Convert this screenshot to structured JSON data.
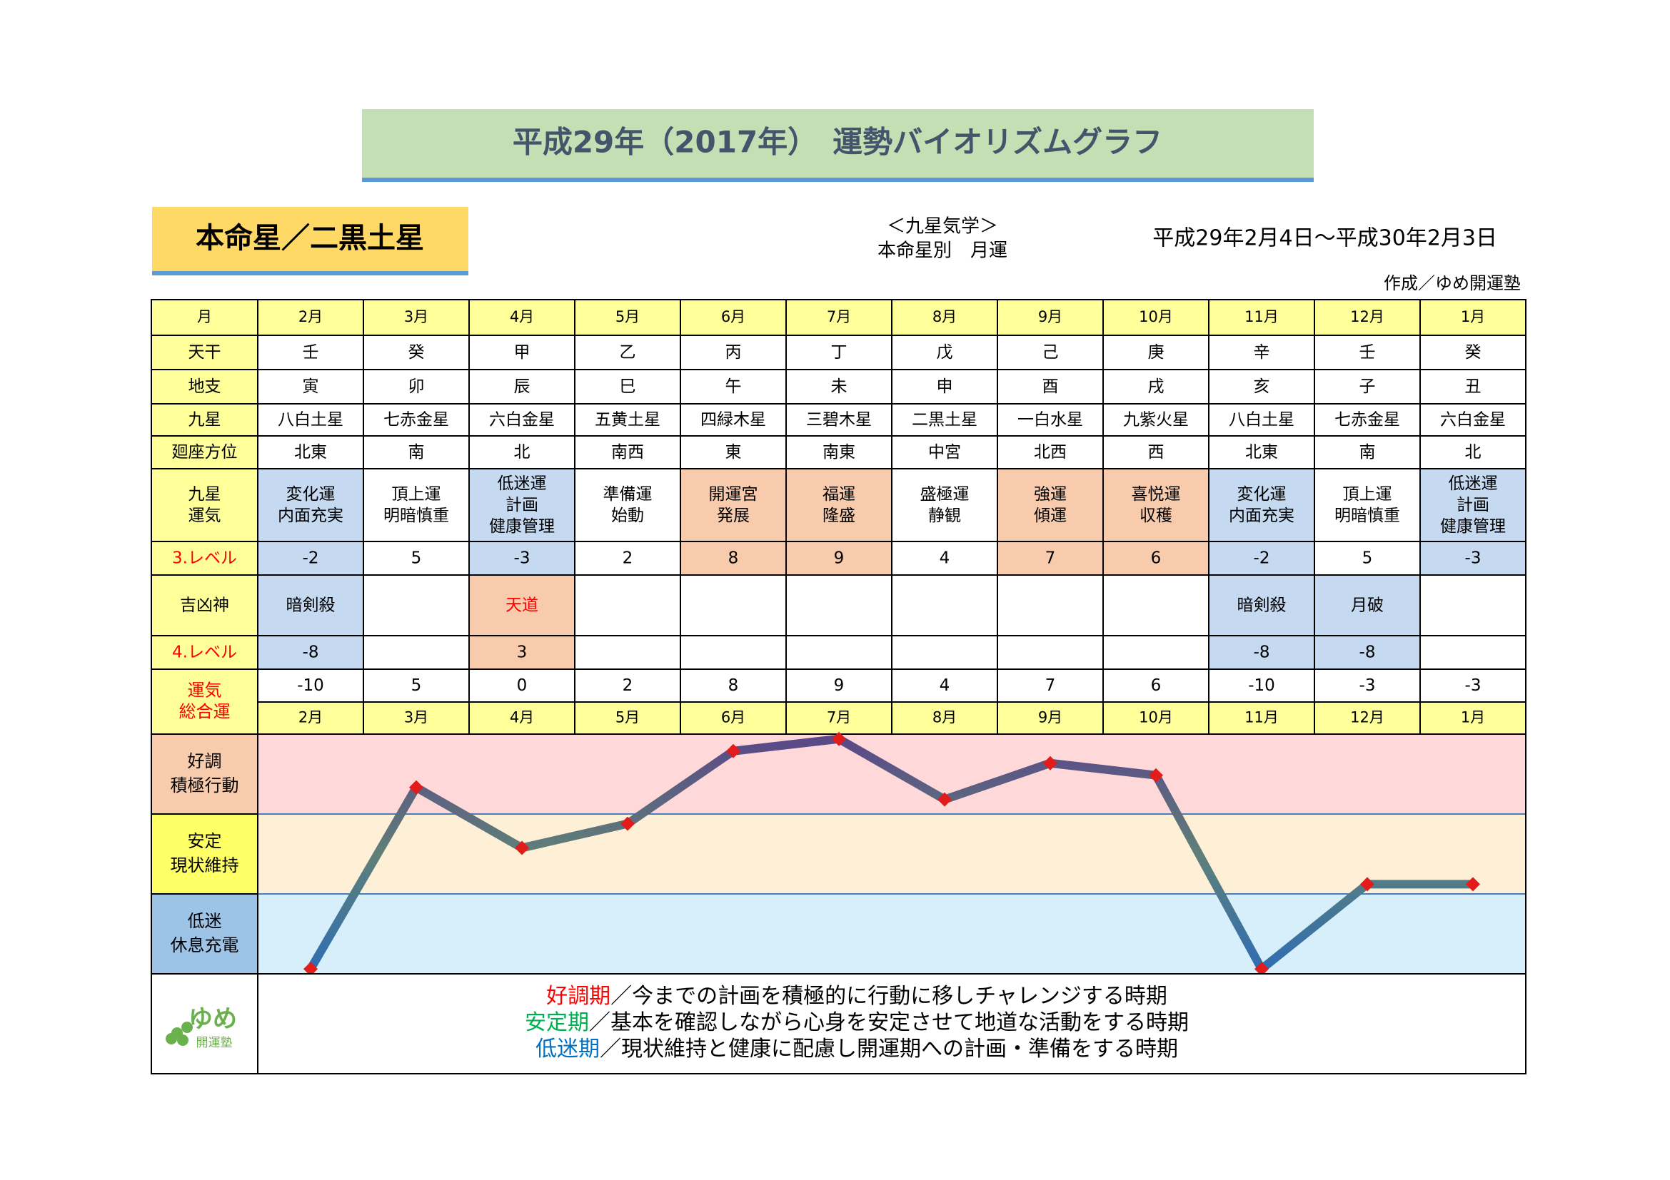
{
  "header": {
    "title": "平成29年（2017年）　運勢バイオリズムグラフ",
    "star": "本命星／二黒土星",
    "school": "＜九星気学＞",
    "subtitle": "本命星別　月運",
    "period": "平成29年2月4日～平成30年2月3日",
    "author": "作成／ゆめ開運塾"
  },
  "table": {
    "header_fill": "#ffff99",
    "fill": "#ffffff",
    "header": {
      "label": "月",
      "cells": [
        "2月",
        "3月",
        "4月",
        "5月",
        "6月",
        "7月",
        "8月",
        "9月",
        "10月",
        "11月",
        "12月",
        "1月"
      ]
    },
    "rows": [
      {
        "label": "天干",
        "cells": [
          "壬",
          "癸",
          "甲",
          "乙",
          "丙",
          "丁",
          "戊",
          "己",
          "庚",
          "辛",
          "壬",
          "癸"
        ]
      },
      {
        "label": "地支",
        "cells": [
          "寅",
          "卯",
          "辰",
          "巳",
          "午",
          "未",
          "申",
          "酉",
          "戌",
          "亥",
          "子",
          "丑"
        ]
      },
      {
        "label": "九星",
        "cells": [
          "八白土星",
          "七赤金星",
          "六白金星",
          "五黄土星",
          "四緑木星",
          "三碧木星",
          "二黒土星",
          "一白水星",
          "九紫火星",
          "八白土星",
          "七赤金星",
          "六白金星"
        ]
      },
      {
        "label": "廻座方位",
        "cells": [
          "北東",
          "南",
          "北",
          "南西",
          "東",
          "南東",
          "中宮",
          "北西",
          "西",
          "北東",
          "南",
          "北"
        ]
      },
      {
        "label": "九星\n運気",
        "cells": [
          "変化運\n内面充実",
          "頂上運\n明暗慎重",
          "低迷運\n計画\n健康管理",
          "準備運\n始動",
          "開運宮\n発展",
          "福運\n隆盛",
          "盛極運\n静観",
          "強運\n傾運",
          "喜悦運\n収穫",
          "変化運\n内面充実",
          "頂上運\n明暗慎重",
          "低迷運\n計画\n健康管理"
        ],
        "fills": [
          "#c5d9f1",
          "#ffffff",
          "#c5d9f1",
          "#ffffff",
          "#f8cbad",
          "#f8cbad",
          "#ffffff",
          "#f8cbad",
          "#f8cbad",
          "#c5d9f1",
          "#ffffff",
          "#c5d9f1"
        ]
      },
      {
        "label": "3.レベル",
        "label_color": "#ff0000",
        "cells": [
          -2,
          5,
          -3,
          2,
          8,
          9,
          4,
          7,
          6,
          -2,
          5,
          -3
        ],
        "fills": [
          "#c5d9f1",
          "#ffffff",
          "#c5d9f1",
          "#ffffff",
          "#f8cbad",
          "#f8cbad",
          "#ffffff",
          "#f8cbad",
          "#f8cbad",
          "#c5d9f1",
          "#ffffff",
          "#c5d9f1"
        ]
      },
      {
        "label": "吉凶神",
        "cells": [
          "暗剣殺",
          null,
          "天道",
          null,
          null,
          null,
          null,
          null,
          null,
          "暗剣殺",
          "月破",
          null
        ],
        "fills": [
          "#c5d9f1",
          "#ffffff",
          "#f8cbad",
          "#ffffff",
          "#ffffff",
          "#ffffff",
          "#ffffff",
          "#ffffff",
          "#ffffff",
          "#c5d9f1",
          "#c5d9f1",
          "#ffffff"
        ],
        "text_colors": [
          "#000000",
          "#000000",
          "#ff0000",
          "#000000",
          "#000000",
          "#000000",
          "#000000",
          "#000000",
          "#000000",
          "#000000",
          "#000000",
          "#000000"
        ]
      },
      {
        "label": "4.レベル",
        "label_color": "#ff0000",
        "cells": [
          -8,
          null,
          3,
          null,
          null,
          null,
          null,
          null,
          null,
          -8,
          -8,
          null
        ],
        "fills": [
          "#c5d9f1",
          "#ffffff",
          "#f8cbad",
          "#ffffff",
          "#ffffff",
          "#ffffff",
          "#ffffff",
          "#ffffff",
          "#ffffff",
          "#c5d9f1",
          "#c5d9f1",
          "#ffffff"
        ]
      }
    ]
  },
  "chart_data": {
    "type": "line",
    "label": "運気\n総合運",
    "label_color": "#ff0000",
    "values": [
      -10,
      5,
      0,
      2,
      8,
      9,
      4,
      7,
      6,
      -10,
      -3,
      -3
    ],
    "categories": [
      "2月",
      "3月",
      "4月",
      "5月",
      "6月",
      "7月",
      "8月",
      "9月",
      "10月",
      "11月",
      "12月",
      "1月"
    ],
    "ylim": [
      -10.4,
      9.4
    ],
    "line_gradient": [
      "#5a4688",
      "#5f8078",
      "#2d6db4"
    ],
    "marker_color": "#e21b1b",
    "bands": [
      {
        "label": "好調\n積極行動",
        "label_fill": "#f8cbad",
        "fill": "#ffd9d9"
      },
      {
        "label": "安定\n現状維持",
        "label_fill": "#ffff66",
        "fill": "#fdf0d6"
      },
      {
        "label": "低迷\n休息充電",
        "label_fill": "#9dc3e6",
        "fill": "#d6effb"
      }
    ]
  },
  "legend": {
    "logo": "ゆめ",
    "logo_sub": "開運塾",
    "items": [
      {
        "term": "好調期",
        "color": "#ff0000",
        "text": "／今までの計画を積極的に行動に移しチャレンジする時期"
      },
      {
        "term": "安定期",
        "color": "#00b050",
        "text": "／基本を確認しながら心身を安定させて地道な活動をする時期"
      },
      {
        "term": "低迷期",
        "color": "#0070c0",
        "text": "／現状維持と健康に配慮し開運期への計画・準備をする時期"
      }
    ]
  }
}
